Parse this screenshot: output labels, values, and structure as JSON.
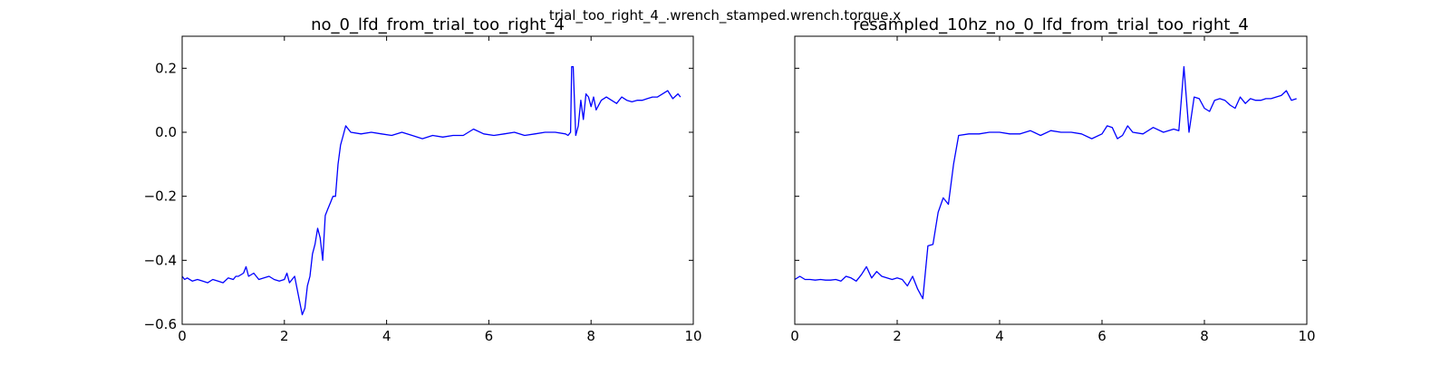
{
  "figure": {
    "suptitle": "trial_too_right_4_.wrench_stamped.wrench.torque.x"
  },
  "chart_data": [
    {
      "type": "line",
      "title": "no_0_lfd_from_trial_too_right_4",
      "xlabel": "",
      "ylabel": "",
      "xlim": [
        0,
        10
      ],
      "ylim": [
        -0.6,
        0.3
      ],
      "xticks": [
        "0",
        "2",
        "4",
        "6",
        "8",
        "10"
      ],
      "yticks": [
        "−0.6",
        "−0.4",
        "−0.2",
        "0.0",
        "0.2"
      ],
      "grid": false,
      "series": [
        {
          "color": "#0000ff",
          "x": [
            0.0,
            0.05,
            0.1,
            0.2,
            0.3,
            0.4,
            0.5,
            0.6,
            0.7,
            0.8,
            0.9,
            1.0,
            1.05,
            1.1,
            1.2,
            1.25,
            1.3,
            1.4,
            1.5,
            1.6,
            1.7,
            1.8,
            1.9,
            2.0,
            2.05,
            2.1,
            2.2,
            2.25,
            2.3,
            2.35,
            2.4,
            2.45,
            2.5,
            2.55,
            2.6,
            2.65,
            2.7,
            2.75,
            2.8,
            2.85,
            2.9,
            2.95,
            3.0,
            3.05,
            3.1,
            3.15,
            3.2,
            3.3,
            3.5,
            3.7,
            3.9,
            4.1,
            4.3,
            4.5,
            4.7,
            4.9,
            5.1,
            5.3,
            5.5,
            5.7,
            5.9,
            6.1,
            6.3,
            6.5,
            6.7,
            6.9,
            7.1,
            7.3,
            7.5,
            7.55,
            7.6,
            7.62,
            7.65,
            7.7,
            7.75,
            7.8,
            7.85,
            7.9,
            7.95,
            8.0,
            8.05,
            8.1,
            8.2,
            8.3,
            8.4,
            8.5,
            8.6,
            8.7,
            8.8,
            8.9,
            9.0,
            9.1,
            9.2,
            9.3,
            9.4,
            9.5,
            9.6,
            9.7,
            9.75
          ],
          "y": [
            -0.45,
            -0.46,
            -0.455,
            -0.465,
            -0.46,
            -0.465,
            -0.47,
            -0.46,
            -0.465,
            -0.47,
            -0.455,
            -0.46,
            -0.45,
            -0.45,
            -0.44,
            -0.42,
            -0.45,
            -0.44,
            -0.46,
            -0.455,
            -0.45,
            -0.46,
            -0.465,
            -0.46,
            -0.44,
            -0.47,
            -0.45,
            -0.49,
            -0.53,
            -0.57,
            -0.55,
            -0.48,
            -0.45,
            -0.38,
            -0.35,
            -0.3,
            -0.33,
            -0.4,
            -0.26,
            -0.24,
            -0.22,
            -0.2,
            -0.2,
            -0.1,
            -0.04,
            -0.01,
            0.02,
            0.0,
            -0.005,
            0.0,
            -0.005,
            -0.01,
            0.0,
            -0.01,
            -0.02,
            -0.01,
            -0.015,
            -0.01,
            -0.01,
            0.01,
            -0.005,
            -0.01,
            -0.005,
            0.0,
            -0.01,
            -0.005,
            0.0,
            0.0,
            -0.005,
            -0.01,
            0.0,
            0.205,
            0.205,
            -0.01,
            0.02,
            0.1,
            0.04,
            0.12,
            0.11,
            0.08,
            0.11,
            0.07,
            0.1,
            0.11,
            0.1,
            0.09,
            0.11,
            0.1,
            0.095,
            0.1,
            0.1,
            0.105,
            0.11,
            0.11,
            0.12,
            0.13,
            0.105,
            0.12,
            0.11
          ]
        }
      ]
    },
    {
      "type": "line",
      "title": "resampled_10hz_no_0_lfd_from_trial_too_right_4",
      "xlabel": "",
      "ylabel": "",
      "xlim": [
        0,
        10
      ],
      "ylim": [
        -0.6,
        0.3
      ],
      "xticks": [
        "0",
        "2",
        "4",
        "6",
        "8",
        "10"
      ],
      "yticks": [],
      "grid": false,
      "series": [
        {
          "color": "#0000ff",
          "x": [
            0.0,
            0.1,
            0.2,
            0.3,
            0.4,
            0.5,
            0.6,
            0.7,
            0.8,
            0.9,
            1.0,
            1.1,
            1.2,
            1.3,
            1.4,
            1.5,
            1.6,
            1.7,
            1.8,
            1.9,
            2.0,
            2.1,
            2.2,
            2.3,
            2.4,
            2.5,
            2.6,
            2.7,
            2.8,
            2.9,
            3.0,
            3.1,
            3.2,
            3.4,
            3.6,
            3.8,
            4.0,
            4.2,
            4.4,
            4.6,
            4.8,
            5.0,
            5.2,
            5.4,
            5.6,
            5.8,
            6.0,
            6.1,
            6.2,
            6.3,
            6.4,
            6.5,
            6.6,
            6.8,
            7.0,
            7.2,
            7.4,
            7.5,
            7.6,
            7.7,
            7.8,
            7.9,
            8.0,
            8.1,
            8.2,
            8.3,
            8.4,
            8.5,
            8.6,
            8.7,
            8.8,
            8.9,
            9.0,
            9.1,
            9.2,
            9.3,
            9.4,
            9.5,
            9.6,
            9.7,
            9.8
          ],
          "y": [
            -0.46,
            -0.45,
            -0.46,
            -0.46,
            -0.462,
            -0.46,
            -0.462,
            -0.462,
            -0.46,
            -0.465,
            -0.45,
            -0.455,
            -0.465,
            -0.445,
            -0.42,
            -0.455,
            -0.435,
            -0.45,
            -0.455,
            -0.46,
            -0.455,
            -0.46,
            -0.48,
            -0.45,
            -0.49,
            -0.52,
            -0.355,
            -0.35,
            -0.25,
            -0.205,
            -0.225,
            -0.1,
            -0.01,
            -0.005,
            -0.005,
            0.0,
            0.0,
            -0.005,
            -0.005,
            0.005,
            -0.01,
            0.005,
            0.0,
            0.0,
            -0.005,
            -0.02,
            -0.005,
            0.02,
            0.015,
            -0.02,
            -0.01,
            0.02,
            0.0,
            -0.005,
            0.015,
            0.0,
            0.01,
            0.005,
            0.205,
            0.0,
            0.11,
            0.105,
            0.075,
            0.065,
            0.1,
            0.105,
            0.1,
            0.085,
            0.075,
            0.11,
            0.09,
            0.105,
            0.1,
            0.1,
            0.105,
            0.105,
            0.11,
            0.115,
            0.13,
            0.1,
            0.105
          ]
        }
      ]
    }
  ]
}
